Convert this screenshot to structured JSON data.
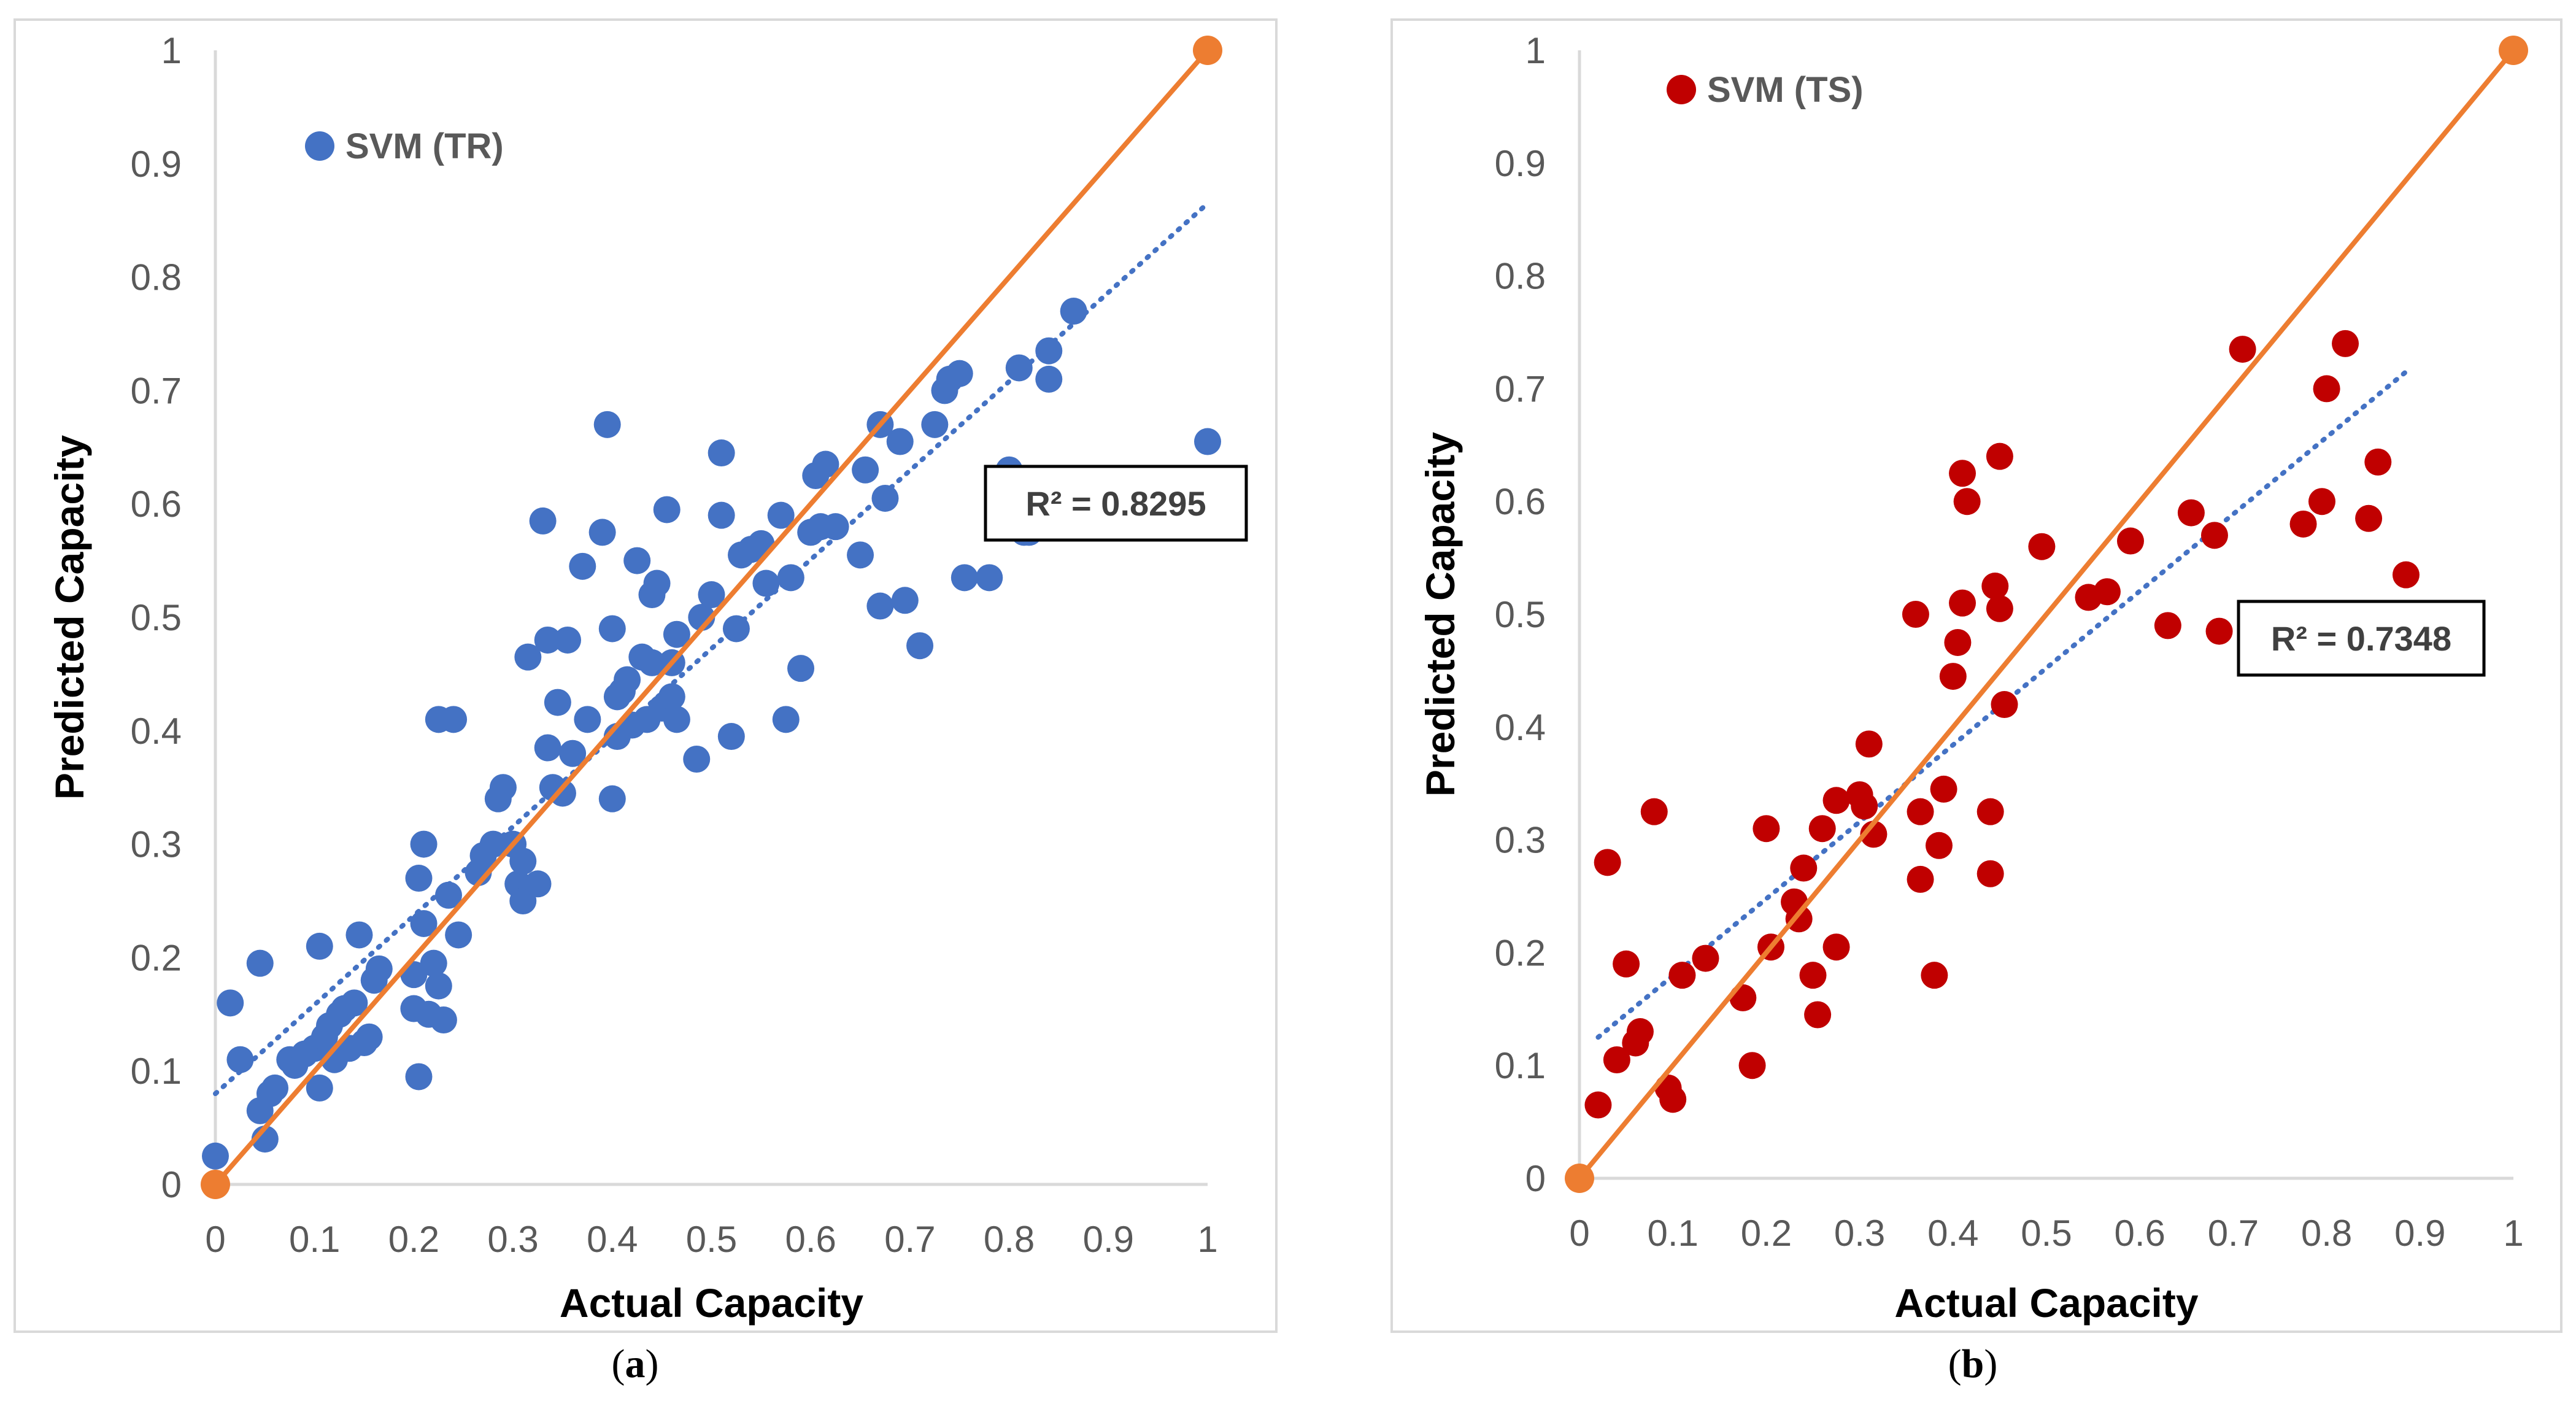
{
  "chart_data": [
    {
      "type": "scatter",
      "panel_label": "a",
      "caption_open": "(",
      "caption_close": ")",
      "xlabel": "Actual Capacity",
      "ylabel": "Predicted Capacity",
      "xlim": [
        0,
        1
      ],
      "ylim": [
        0,
        1
      ],
      "x_ticks": [
        "0",
        "0.1",
        "0.2",
        "0.3",
        "0.4",
        "0.5",
        "0.6",
        "0.7",
        "0.8",
        "0.9",
        "1"
      ],
      "y_ticks": [
        "0",
        "0.1",
        "0.2",
        "0.3",
        "0.4",
        "0.5",
        "0.6",
        "0.7",
        "0.8",
        "0.9",
        "1"
      ],
      "legend": "SVM (TR)",
      "legend_position": "top-left",
      "r2_label": "R² = 0.8295",
      "colors": {
        "points": "#4472c4",
        "ideal_line": "#ed7d31",
        "trendline": "#4472c4"
      },
      "trendline": {
        "x": [
          0,
          1
        ],
        "y": [
          0.08,
          0.865
        ]
      },
      "ideal_line": {
        "x": [
          0,
          1
        ],
        "y": [
          0,
          1
        ]
      },
      "points": [
        [
          0.0,
          0.025
        ],
        [
          0.015,
          0.16
        ],
        [
          0.025,
          0.11
        ],
        [
          0.045,
          0.195
        ],
        [
          0.045,
          0.065
        ],
        [
          0.05,
          0.04
        ],
        [
          0.055,
          0.08
        ],
        [
          0.06,
          0.085
        ],
        [
          0.075,
          0.11
        ],
        [
          0.08,
          0.105
        ],
        [
          0.09,
          0.115
        ],
        [
          0.1,
          0.12
        ],
        [
          0.105,
          0.085
        ],
        [
          0.105,
          0.21
        ],
        [
          0.11,
          0.13
        ],
        [
          0.115,
          0.14
        ],
        [
          0.12,
          0.11
        ],
        [
          0.125,
          0.15
        ],
        [
          0.13,
          0.155
        ],
        [
          0.135,
          0.12
        ],
        [
          0.14,
          0.16
        ],
        [
          0.145,
          0.22
        ],
        [
          0.15,
          0.125
        ],
        [
          0.155,
          0.13
        ],
        [
          0.16,
          0.18
        ],
        [
          0.165,
          0.19
        ],
        [
          0.2,
          0.185
        ],
        [
          0.2,
          0.155
        ],
        [
          0.205,
          0.095
        ],
        [
          0.205,
          0.27
        ],
        [
          0.21,
          0.3
        ],
        [
          0.21,
          0.23
        ],
        [
          0.215,
          0.15
        ],
        [
          0.22,
          0.195
        ],
        [
          0.225,
          0.41
        ],
        [
          0.225,
          0.175
        ],
        [
          0.23,
          0.145
        ],
        [
          0.235,
          0.255
        ],
        [
          0.24,
          0.41
        ],
        [
          0.245,
          0.22
        ],
        [
          0.265,
          0.275
        ],
        [
          0.27,
          0.29
        ],
        [
          0.28,
          0.3
        ],
        [
          0.285,
          0.34
        ],
        [
          0.29,
          0.35
        ],
        [
          0.3,
          0.3
        ],
        [
          0.305,
          0.265
        ],
        [
          0.31,
          0.25
        ],
        [
          0.31,
          0.285
        ],
        [
          0.315,
          0.465
        ],
        [
          0.325,
          0.265
        ],
        [
          0.33,
          0.585
        ],
        [
          0.335,
          0.48
        ],
        [
          0.335,
          0.385
        ],
        [
          0.34,
          0.35
        ],
        [
          0.345,
          0.425
        ],
        [
          0.35,
          0.345
        ],
        [
          0.355,
          0.48
        ],
        [
          0.36,
          0.38
        ],
        [
          0.37,
          0.545
        ],
        [
          0.375,
          0.41
        ],
        [
          0.39,
          0.575
        ],
        [
          0.395,
          0.67
        ],
        [
          0.4,
          0.49
        ],
        [
          0.4,
          0.34
        ],
        [
          0.405,
          0.395
        ],
        [
          0.405,
          0.43
        ],
        [
          0.41,
          0.435
        ],
        [
          0.415,
          0.445
        ],
        [
          0.42,
          0.405
        ],
        [
          0.425,
          0.55
        ],
        [
          0.43,
          0.465
        ],
        [
          0.435,
          0.41
        ],
        [
          0.44,
          0.46
        ],
        [
          0.44,
          0.52
        ],
        [
          0.445,
          0.53
        ],
        [
          0.45,
          0.42
        ],
        [
          0.455,
          0.595
        ],
        [
          0.46,
          0.46
        ],
        [
          0.46,
          0.43
        ],
        [
          0.465,
          0.41
        ],
        [
          0.465,
          0.485
        ],
        [
          0.485,
          0.375
        ],
        [
          0.49,
          0.5
        ],
        [
          0.5,
          0.52
        ],
        [
          0.51,
          0.645
        ],
        [
          0.51,
          0.59
        ],
        [
          0.52,
          0.395
        ],
        [
          0.525,
          0.49
        ],
        [
          0.53,
          0.555
        ],
        [
          0.54,
          0.56
        ],
        [
          0.55,
          0.565
        ],
        [
          0.555,
          0.53
        ],
        [
          0.57,
          0.59
        ],
        [
          0.575,
          0.41
        ],
        [
          0.58,
          0.535
        ],
        [
          0.59,
          0.455
        ],
        [
          0.6,
          0.575
        ],
        [
          0.605,
          0.625
        ],
        [
          0.61,
          0.58
        ],
        [
          0.615,
          0.635
        ],
        [
          0.625,
          0.58
        ],
        [
          0.65,
          0.555
        ],
        [
          0.655,
          0.63
        ],
        [
          0.67,
          0.67
        ],
        [
          0.67,
          0.51
        ],
        [
          0.675,
          0.605
        ],
        [
          0.69,
          0.655
        ],
        [
          0.695,
          0.515
        ],
        [
          0.71,
          0.475
        ],
        [
          0.725,
          0.67
        ],
        [
          0.735,
          0.7
        ],
        [
          0.74,
          0.71
        ],
        [
          0.75,
          0.715
        ],
        [
          0.755,
          0.535
        ],
        [
          0.78,
          0.535
        ],
        [
          0.8,
          0.63
        ],
        [
          0.81,
          0.72
        ],
        [
          0.815,
          0.575
        ],
        [
          0.82,
          0.575
        ],
        [
          0.84,
          0.735
        ],
        [
          0.84,
          0.71
        ],
        [
          0.865,
          0.77
        ],
        [
          1.0,
          0.655
        ]
      ]
    },
    {
      "type": "scatter",
      "panel_label": "b",
      "caption_open": "(",
      "caption_close": ")",
      "xlabel": "Actual Capacity",
      "ylabel": "Predicted Capacity",
      "xlim": [
        0,
        1
      ],
      "ylim": [
        0,
        1
      ],
      "x_ticks": [
        "0",
        "0.1",
        "0.2",
        "0.3",
        "0.4",
        "0.5",
        "0.6",
        "0.7",
        "0.8",
        "0.9",
        "1"
      ],
      "y_ticks": [
        "0",
        "0.1",
        "0.2",
        "0.3",
        "0.4",
        "0.5",
        "0.6",
        "0.7",
        "0.8",
        "0.9",
        "1"
      ],
      "legend": "SVM (TS)",
      "legend_position": "top-left",
      "r2_label": "R² = 0.7348",
      "colors": {
        "points": "#c00000",
        "ideal_line": "#ed7d31",
        "trendline": "#4472c4"
      },
      "trendline": {
        "x": [
          0.02,
          0.885
        ],
        "y": [
          0.125,
          0.715
        ]
      },
      "ideal_line": {
        "x": [
          0,
          1
        ],
        "y": [
          0,
          1
        ]
      },
      "points": [
        [
          0.02,
          0.065
        ],
        [
          0.03,
          0.28
        ],
        [
          0.04,
          0.105
        ],
        [
          0.05,
          0.19
        ],
        [
          0.06,
          0.12
        ],
        [
          0.065,
          0.13
        ],
        [
          0.08,
          0.325
        ],
        [
          0.095,
          0.08
        ],
        [
          0.1,
          0.07
        ],
        [
          0.11,
          0.18
        ],
        [
          0.135,
          0.195
        ],
        [
          0.175,
          0.16
        ],
        [
          0.185,
          0.1
        ],
        [
          0.2,
          0.31
        ],
        [
          0.205,
          0.205
        ],
        [
          0.23,
          0.245
        ],
        [
          0.235,
          0.23
        ],
        [
          0.24,
          0.275
        ],
        [
          0.25,
          0.18
        ],
        [
          0.255,
          0.145
        ],
        [
          0.26,
          0.31
        ],
        [
          0.275,
          0.205
        ],
        [
          0.275,
          0.335
        ],
        [
          0.3,
          0.34
        ],
        [
          0.305,
          0.33
        ],
        [
          0.31,
          0.385
        ],
        [
          0.315,
          0.305
        ],
        [
          0.36,
          0.5
        ],
        [
          0.365,
          0.325
        ],
        [
          0.365,
          0.265
        ],
        [
          0.38,
          0.18
        ],
        [
          0.385,
          0.295
        ],
        [
          0.39,
          0.345
        ],
        [
          0.4,
          0.445
        ],
        [
          0.405,
          0.475
        ],
        [
          0.41,
          0.625
        ],
        [
          0.41,
          0.51
        ],
        [
          0.415,
          0.6
        ],
        [
          0.44,
          0.325
        ],
        [
          0.44,
          0.27
        ],
        [
          0.445,
          0.525
        ],
        [
          0.45,
          0.64
        ],
        [
          0.45,
          0.505
        ],
        [
          0.455,
          0.42
        ],
        [
          0.495,
          0.56
        ],
        [
          0.545,
          0.515
        ],
        [
          0.565,
          0.52
        ],
        [
          0.59,
          0.565
        ],
        [
          0.63,
          0.49
        ],
        [
          0.655,
          0.59
        ],
        [
          0.68,
          0.57
        ],
        [
          0.685,
          0.485
        ],
        [
          0.71,
          0.735
        ],
        [
          0.775,
          0.58
        ],
        [
          0.795,
          0.6
        ],
        [
          0.8,
          0.7
        ],
        [
          0.82,
          0.74
        ],
        [
          0.845,
          0.585
        ],
        [
          0.855,
          0.635
        ],
        [
          0.885,
          0.535
        ]
      ]
    }
  ]
}
